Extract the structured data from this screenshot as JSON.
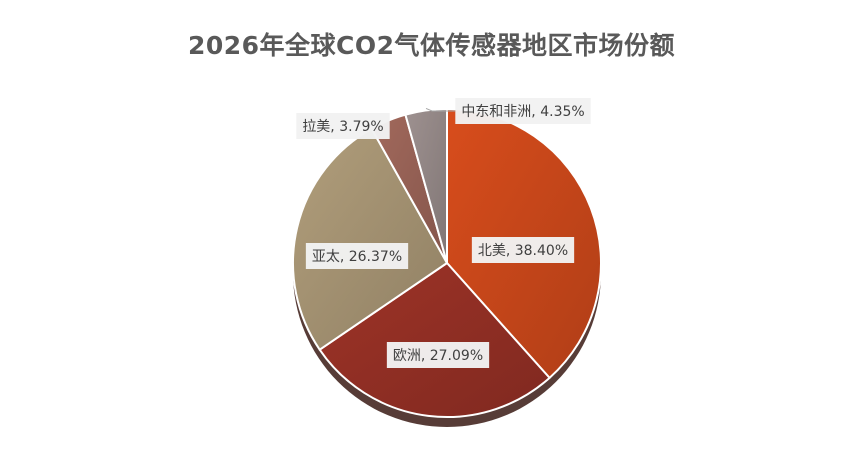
{
  "chart_data": {
    "type": "pie",
    "title": "2026年全球CO2气体传感器地区市场份额",
    "categories": [
      "北美",
      "欧洲",
      "亚太",
      "拉美",
      "中东和非洲"
    ],
    "values": [
      38.4,
      27.09,
      26.37,
      3.79,
      4.35
    ],
    "labels": [
      "北美, 38.40%",
      "欧洲, 27.09%",
      "亚太, 26.37%",
      "拉美, 3.79%",
      "中东和非洲, 4.35%"
    ],
    "colors": [
      "#C8471A",
      "#922F24",
      "#A49272",
      "#966155",
      "#928685"
    ],
    "legend": "none"
  }
}
